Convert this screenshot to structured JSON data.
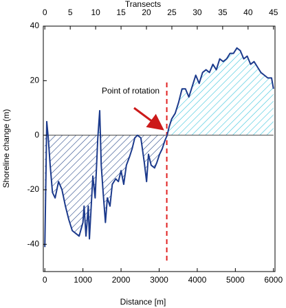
{
  "chart_data": {
    "type": "line",
    "xlabel": "Distance [m]",
    "ylabel": "Shoreline change (m)",
    "x2label": "Transects",
    "annotation": "Point of rotation",
    "x": [
      0,
      50,
      90,
      140,
      200,
      270,
      360,
      450,
      540,
      630,
      720,
      810,
      900,
      1000,
      1030,
      1080,
      1140,
      1170,
      1260,
      1320,
      1390,
      1440,
      1480,
      1530,
      1590,
      1640,
      1710,
      1770,
      1860,
      1930,
      2000,
      2070,
      2140,
      2220,
      2290,
      2360,
      2430,
      2520,
      2610,
      2670,
      2720,
      2790,
      2880,
      2940,
      3010,
      3080,
      3150,
      3210,
      3260,
      3330,
      3420,
      3510,
      3600,
      3690,
      3780,
      3870,
      3960,
      4050,
      4140,
      4230,
      4320,
      4410,
      4500,
      4590,
      4680,
      4770,
      4860,
      4950,
      5040,
      5130,
      5220,
      5310,
      5400,
      5490,
      5580,
      5670,
      5760,
      5850,
      5950,
      6000
    ],
    "values": [
      -41,
      5,
      -1,
      -11,
      -21,
      -23,
      -17,
      -20,
      -26,
      -31,
      -35,
      -36,
      -37,
      -32,
      -26,
      -37,
      -26,
      -38,
      -15,
      -23,
      -1,
      9,
      -11,
      -21,
      -32,
      -23,
      -26,
      -18,
      -16,
      -17,
      -13,
      -18,
      -11,
      -8,
      -5,
      -1,
      0,
      -1,
      -10,
      -17,
      -7,
      -11,
      -12,
      -10,
      -7,
      -5,
      -2,
      0,
      3,
      6,
      8,
      12,
      17,
      17,
      14,
      18,
      22,
      19,
      23,
      24,
      23,
      26,
      24,
      28,
      27,
      28,
      30,
      30,
      32,
      31,
      28,
      29,
      26,
      27,
      25,
      23,
      22,
      21,
      21,
      17
    ],
    "color": "#1c3a8c",
    "fill_below_color": "#2a4a8a",
    "fill_above_color": "#3cc4dc",
    "reference_line": {
      "x": 3200,
      "color": "#e02020"
    },
    "xlim": [
      -40,
      6040
    ],
    "ylim": [
      -50,
      40
    ],
    "x2lim": [
      -0.3,
      45.3
    ],
    "xticks": [
      0,
      1000,
      2000,
      3000,
      4000,
      5000,
      6000
    ],
    "yticks": [
      -40,
      -20,
      0,
      20,
      40
    ],
    "x2ticks": [
      0,
      5,
      10,
      15,
      20,
      25,
      30,
      35,
      40,
      45
    ],
    "grid": false
  }
}
